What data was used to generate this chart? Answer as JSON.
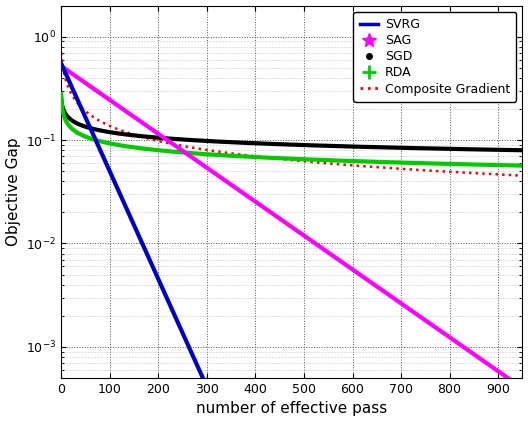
{
  "x_max": 950,
  "x_ticks": [
    0,
    100,
    200,
    300,
    400,
    500,
    600,
    700,
    800,
    900
  ],
  "ylim_lo": 0.0005,
  "ylim_hi": 2.0,
  "xlabel": "number of effective pass",
  "ylabel": "Objective Gap",
  "legend_entries": [
    "SVRG",
    "SAG",
    "SGD",
    "RDA",
    "Composite Gradient"
  ],
  "svrg_color": "#0000cc",
  "sag_color": "#ff00ff",
  "sgd_color": "#000000",
  "rda_color": "#00cc00",
  "cg_color": "#ff0000",
  "background_color": "#ffffff"
}
